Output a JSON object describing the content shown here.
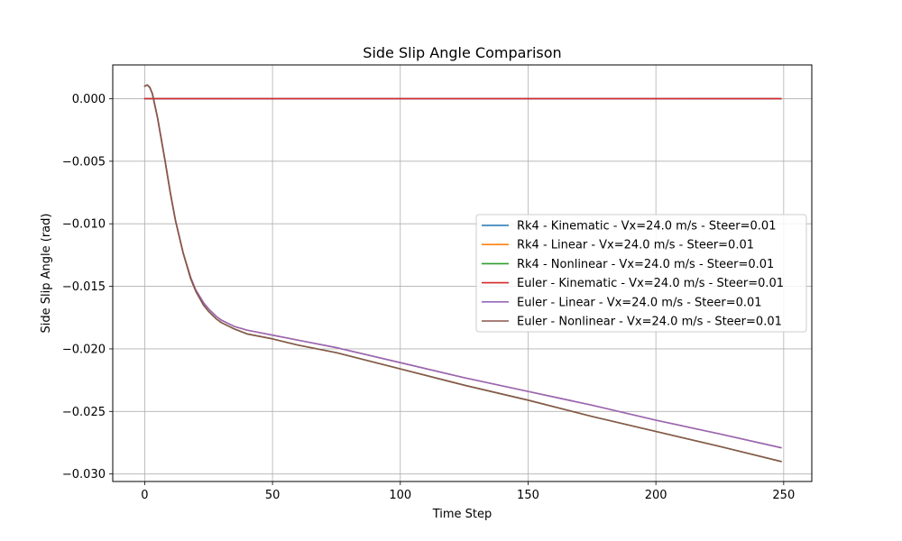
{
  "chart_data": {
    "type": "line",
    "title": "Side Slip Angle Comparison",
    "xlabel": "Time Step",
    "ylabel": "Side Slip Angle (rad)",
    "xlim": [
      -12.5,
      261
    ],
    "ylim": [
      -0.0306,
      0.0027
    ],
    "xticks": [
      0,
      50,
      100,
      150,
      200,
      250
    ],
    "xtick_labels": [
      "0",
      "50",
      "100",
      "150",
      "200",
      "250"
    ],
    "yticks": [
      0.0,
      -0.005,
      -0.01,
      -0.015,
      -0.02,
      -0.025,
      -0.03
    ],
    "ytick_labels": [
      "0.000",
      "−0.005",
      "−0.010",
      "−0.015",
      "−0.020",
      "−0.025",
      "−0.030"
    ],
    "grid": true,
    "legend_position": "center-right",
    "series": [
      {
        "name": "Rk4 - Kinematic - Vx=24.0 m/s - Steer=0.01",
        "color": "#1f77b4",
        "x": [
          0,
          249
        ],
        "y": [
          0.0,
          0.0
        ]
      },
      {
        "name": "Rk4 - Linear - Vx=24.0 m/s - Steer=0.01",
        "color": "#ff7f0e",
        "x": [
          0,
          1,
          2,
          3,
          5,
          8,
          10,
          12,
          15,
          18,
          20,
          23,
          25,
          28,
          30,
          35,
          40,
          45,
          50,
          60,
          75,
          100,
          125,
          150,
          175,
          200,
          225,
          249
        ],
        "y": [
          0.001,
          0.0011,
          0.0009,
          0.0004,
          -0.0015,
          -0.005,
          -0.0075,
          -0.0097,
          -0.0123,
          -0.0143,
          -0.0153,
          -0.0163,
          -0.0168,
          -0.0174,
          -0.0177,
          -0.0182,
          -0.0185,
          -0.0187,
          -0.0189,
          -0.0193,
          -0.0199,
          -0.0211,
          -0.0223,
          -0.0234,
          -0.0245,
          -0.0257,
          -0.0268,
          -0.0279
        ]
      },
      {
        "name": "Rk4 - Nonlinear - Vx=24.0 m/s - Steer=0.01",
        "color": "#2ca02c",
        "x": [
          0,
          1,
          2,
          3,
          5,
          8,
          10,
          12,
          15,
          18,
          20,
          23,
          25,
          28,
          30,
          35,
          40,
          45,
          50,
          60,
          75,
          100,
          125,
          150,
          175,
          200,
          225,
          249
        ],
        "y": [
          0.001,
          0.0011,
          0.0009,
          0.0004,
          -0.0015,
          -0.005,
          -0.0075,
          -0.0097,
          -0.0123,
          -0.0144,
          -0.0154,
          -0.0165,
          -0.017,
          -0.0176,
          -0.0179,
          -0.0184,
          -0.0188,
          -0.019,
          -0.0192,
          -0.0197,
          -0.0203,
          -0.0216,
          -0.0229,
          -0.0241,
          -0.0254,
          -0.0266,
          -0.0278,
          -0.029
        ]
      },
      {
        "name": "Euler - Kinematic - Vx=24.0 m/s - Steer=0.01",
        "color": "#d62728",
        "x": [
          0,
          249
        ],
        "y": [
          0.0,
          0.0
        ]
      },
      {
        "name": "Euler - Linear - Vx=24.0 m/s - Steer=0.01",
        "color": "#9467bd",
        "x": [
          0,
          1,
          2,
          3,
          5,
          8,
          10,
          12,
          15,
          18,
          20,
          23,
          25,
          28,
          30,
          35,
          40,
          45,
          50,
          60,
          75,
          100,
          125,
          150,
          175,
          200,
          225,
          249
        ],
        "y": [
          0.001,
          0.0011,
          0.0009,
          0.0004,
          -0.0015,
          -0.005,
          -0.0075,
          -0.0097,
          -0.0123,
          -0.0143,
          -0.0153,
          -0.0163,
          -0.0168,
          -0.0174,
          -0.0177,
          -0.0182,
          -0.0185,
          -0.0187,
          -0.0189,
          -0.0193,
          -0.0199,
          -0.0211,
          -0.0223,
          -0.0234,
          -0.0245,
          -0.0257,
          -0.0268,
          -0.0279
        ]
      },
      {
        "name": "Euler - Nonlinear - Vx=24.0 m/s - Steer=0.01",
        "color": "#8c564b",
        "x": [
          0,
          1,
          2,
          3,
          5,
          8,
          10,
          12,
          15,
          18,
          20,
          23,
          25,
          28,
          30,
          35,
          40,
          45,
          50,
          60,
          75,
          100,
          125,
          150,
          175,
          200,
          225,
          249
        ],
        "y": [
          0.001,
          0.0011,
          0.0009,
          0.0004,
          -0.0015,
          -0.005,
          -0.0075,
          -0.0097,
          -0.0123,
          -0.0144,
          -0.0154,
          -0.0165,
          -0.017,
          -0.0176,
          -0.0179,
          -0.0184,
          -0.0188,
          -0.019,
          -0.0192,
          -0.0197,
          -0.0203,
          -0.0216,
          -0.0229,
          -0.0241,
          -0.0254,
          -0.0266,
          -0.0278,
          -0.029
        ]
      }
    ]
  }
}
